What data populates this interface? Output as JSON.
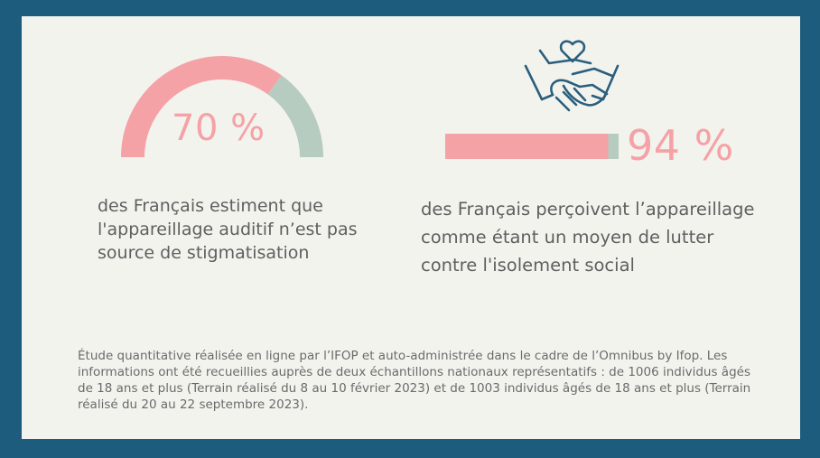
{
  "chart_data": [
    {
      "type": "gauge",
      "value_label": "70 %",
      "value": 70,
      "max": 100,
      "description": "des Français estiment que l'appareillage auditif n’est pas source de stigmatisation",
      "colors": {
        "value": "#f5a2a6",
        "remainder": "#b7ccc0"
      }
    },
    {
      "type": "bar",
      "value_label": "94 %",
      "value": 94,
      "max": 100,
      "description": "des Français perçoivent l’appareillage comme étant un moyen de lutter contre l'isolement social",
      "colors": {
        "value": "#f5a2a6",
        "remainder": "#b7ccc0"
      }
    }
  ],
  "footnote": "Étude quantitative réalisée en ligne par l’IFOP et auto-administrée dans le cadre de l’Omnibus by Ifop. Les informations ont été recueillies auprès de deux échantillons nationaux représentatifs : de 1006 individus âgés de 18 ans et plus (Terrain réalisé du 8 au 10 février 2023) et de 1003 individus âgés de 18 ans et plus (Terrain réalisé du 20 au 22 septembre 2023).",
  "icon": "handshake-heart-icon",
  "colors": {
    "frame": "#1d5c7c",
    "card": "#f3f3ee",
    "icon": "#2a5f7d",
    "text": "#5f5f5f"
  }
}
